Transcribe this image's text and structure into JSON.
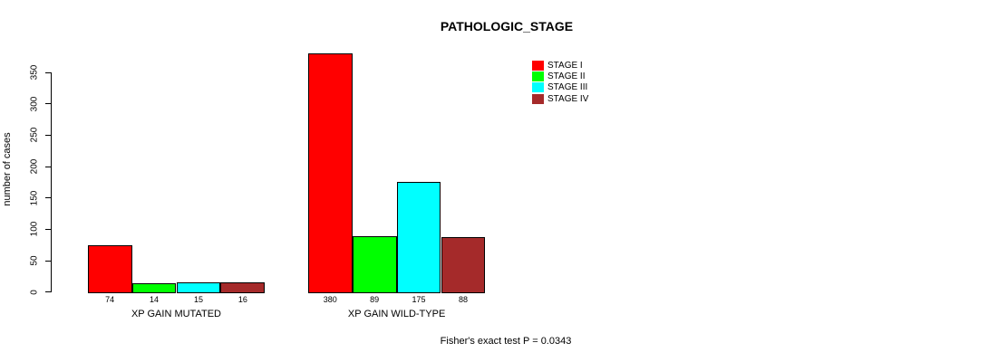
{
  "title": "PATHOLOGIC_STAGE",
  "footer": "Fisher's exact test P = 0.0343",
  "chart_data": {
    "type": "bar",
    "title": "PATHOLOGIC_STAGE",
    "ylabel": "number of cases",
    "xlabel": "",
    "ylim": [
      0,
      350
    ],
    "yticks": [
      0,
      50,
      100,
      150,
      200,
      250,
      300,
      350
    ],
    "grid": false,
    "legend_position": "top-right",
    "series": [
      {
        "name": "STAGE I",
        "color": "#ff0000"
      },
      {
        "name": "STAGE II",
        "color": "#00ff00"
      },
      {
        "name": "STAGE III",
        "color": "#00ffff"
      },
      {
        "name": "STAGE IV",
        "color": "#a52a2a"
      }
    ],
    "groups": [
      {
        "label": "XP GAIN MUTATED",
        "values": [
          74,
          14,
          15,
          16
        ]
      },
      {
        "label": "XP GAIN WILD-TYPE",
        "values": [
          380,
          89,
          175,
          88
        ]
      }
    ],
    "annotation": "Fisher's exact test P = 0.0343"
  }
}
